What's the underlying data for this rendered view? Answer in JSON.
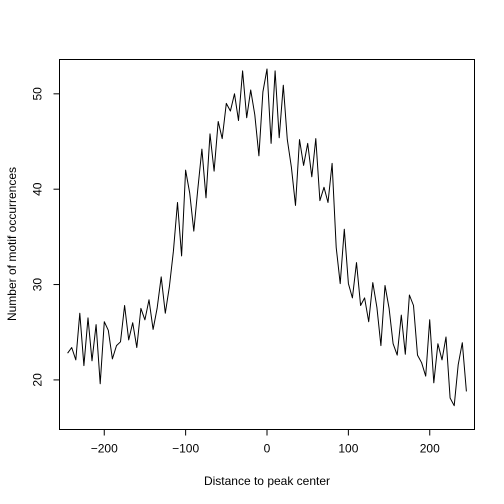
{
  "chart_data": {
    "type": "line",
    "title": "",
    "xlabel": "Distance to peak center",
    "ylabel": "Number of motif occurrences",
    "xlim": [
      -255,
      255
    ],
    "ylim": [
      14.8,
      53.6
    ],
    "xticks": [
      -200,
      -100,
      0,
      100,
      200
    ],
    "yticks": [
      20,
      30,
      40,
      50
    ],
    "xtick_labels": [
      "−200",
      "−100",
      "0",
      "100",
      "200"
    ],
    "ytick_labels": [
      "20",
      "30",
      "40",
      "50"
    ],
    "grid": false,
    "legend": "none",
    "line_color": "#000000",
    "series": [
      {
        "x": [
          -245,
          -240,
          -235,
          -230,
          -225,
          -220,
          -215,
          -210,
          -205,
          -200,
          -195,
          -190,
          -185,
          -180,
          -175,
          -170,
          -165,
          -160,
          -155,
          -150,
          -145,
          -140,
          -135,
          -130,
          -125,
          -120,
          -115,
          -110,
          -105,
          -100,
          -95,
          -90,
          -85,
          -80,
          -75,
          -70,
          -65,
          -60,
          -55,
          -50,
          -45,
          -40,
          -35,
          -30,
          -25,
          -20,
          -15,
          -10,
          -5,
          0,
          5,
          10,
          15,
          20,
          25,
          30,
          35,
          40,
          45,
          50,
          55,
          60,
          65,
          70,
          75,
          80,
          85,
          90,
          95,
          100,
          105,
          110,
          115,
          120,
          125,
          130,
          135,
          140,
          145,
          150,
          155,
          160,
          165,
          170,
          175,
          180,
          185,
          190,
          195,
          200,
          205,
          210,
          215,
          220,
          225,
          230,
          235,
          240,
          245
        ],
        "values": [
          22.8,
          23.4,
          22.1,
          27.0,
          21.5,
          26.5,
          22.0,
          25.8,
          19.6,
          26.1,
          25.2,
          22.2,
          23.6,
          24.0,
          27.8,
          24.2,
          26.0,
          23.4,
          27.5,
          26.3,
          28.4,
          25.3,
          27.5,
          30.8,
          27.0,
          29.8,
          33.5,
          38.6,
          33.0,
          42.0,
          39.6,
          35.6,
          40.0,
          44.2,
          39.1,
          45.8,
          41.9,
          47.1,
          45.3,
          49.0,
          48.2,
          50.0,
          47.2,
          52.4,
          47.5,
          50.4,
          47.8,
          43.5,
          50.2,
          52.6,
          44.8,
          52.4,
          45.4,
          50.9,
          45.2,
          42.3,
          38.3,
          45.2,
          42.5,
          44.8,
          41.3,
          45.3,
          38.8,
          40.2,
          38.6,
          42.7,
          33.9,
          30.1,
          35.8,
          30.1,
          28.6,
          32.3,
          27.8,
          28.6,
          26.1,
          30.2,
          27.6,
          23.6,
          29.9,
          27.5,
          23.8,
          22.6,
          26.8,
          22.7,
          28.9,
          27.8,
          22.6,
          21.8,
          20.4,
          26.3,
          19.7,
          23.8,
          22.1,
          24.5,
          18.1,
          17.3,
          21.6,
          23.9,
          18.8
        ]
      }
    ]
  }
}
